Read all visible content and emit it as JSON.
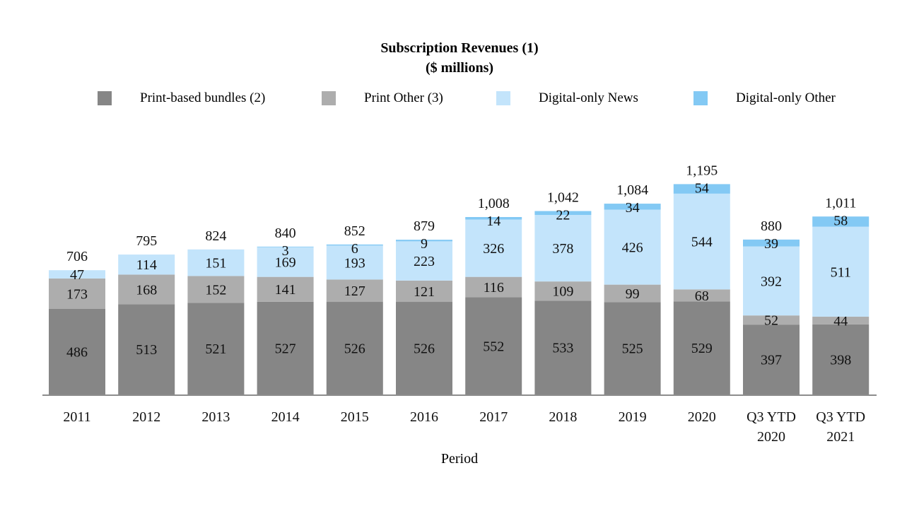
{
  "chart_data": {
    "type": "bar",
    "stacked": true,
    "title": "Subscription Revenues (1)",
    "subtitle": "($ millions)",
    "xlabel": "Period",
    "ylabel": "",
    "legend_position": "top",
    "grid": false,
    "ylim": [
      0,
      1250
    ],
    "categories": [
      "2011",
      "2012",
      "2013",
      "2014",
      "2015",
      "2016",
      "2017",
      "2018",
      "2019",
      "2020",
      "Q3 YTD\n2020",
      "Q3 YTD\n2021"
    ],
    "series": [
      {
        "name": "Print-based bundles (2)",
        "color": "#868686",
        "values": [
          486,
          513,
          521,
          527,
          526,
          526,
          552,
          533,
          525,
          529,
          397,
          398
        ]
      },
      {
        "name": "Print Other (3)",
        "color": "#adadad",
        "values": [
          173,
          168,
          152,
          141,
          127,
          121,
          116,
          109,
          99,
          68,
          52,
          44
        ]
      },
      {
        "name": "Digital-only News",
        "color": "#c3e4fb",
        "values": [
          47,
          114,
          151,
          169,
          193,
          223,
          326,
          378,
          426,
          544,
          392,
          511
        ]
      },
      {
        "name": "Digital-only Other",
        "color": "#83c9f4",
        "values": [
          null,
          null,
          null,
          3,
          6,
          9,
          14,
          22,
          34,
          54,
          39,
          58
        ]
      }
    ],
    "totals": [
      706,
      795,
      824,
      840,
      852,
      879,
      1008,
      1042,
      1084,
      1195,
      880,
      1011
    ],
    "value_labels": [
      [
        "486",
        "513",
        "521",
        "527",
        "526",
        "526",
        "552",
        "533",
        "525",
        "529",
        "397",
        "398"
      ],
      [
        "173",
        "168",
        "152",
        "141",
        "127",
        "121",
        "116",
        "109",
        "99",
        "68",
        "52",
        "44"
      ],
      [
        "47",
        "114",
        "151",
        "169",
        "193",
        "223",
        "326",
        "378",
        "426",
        "544",
        "392",
        "511"
      ],
      [
        "",
        "",
        "",
        "3",
        "6",
        "9",
        "14",
        "22",
        "34",
        "54",
        "39",
        "58"
      ]
    ],
    "total_labels": [
      "706",
      "795",
      "824",
      "840",
      "852",
      "879",
      "1,008",
      "1,042",
      "1,084",
      "1,195",
      "880",
      "1,011"
    ]
  }
}
